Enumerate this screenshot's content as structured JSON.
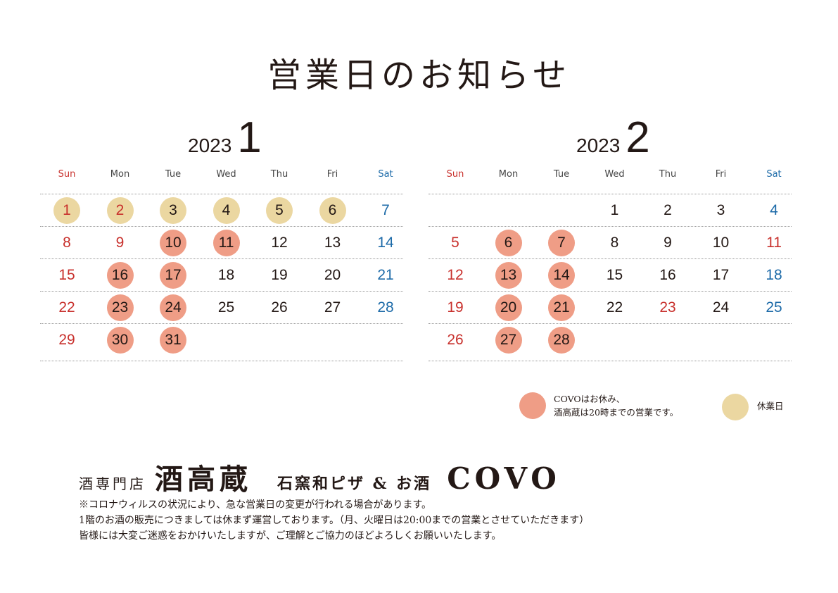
{
  "title": "営業日のお知らせ",
  "weekdays": [
    "Sun",
    "Mon",
    "Tue",
    "Wed",
    "Thu",
    "Fri",
    "Sat"
  ],
  "colors": {
    "closed": "#ef9d86",
    "holiday": "#ebd7a1",
    "sunday": "#c8302c",
    "saturday": "#1c6aa8"
  },
  "calendars": [
    {
      "year": "2023",
      "month": "1",
      "weeks": [
        [
          {
            "d": "1",
            "type": "holiday",
            "color": "red"
          },
          {
            "d": "2",
            "type": "holiday",
            "color": "red"
          },
          {
            "d": "3",
            "type": "holiday"
          },
          {
            "d": "4",
            "type": "holiday"
          },
          {
            "d": "5",
            "type": "holiday"
          },
          {
            "d": "6",
            "type": "holiday"
          },
          {
            "d": "7",
            "color": "blue"
          }
        ],
        [
          {
            "d": "8",
            "color": "red"
          },
          {
            "d": "9",
            "color": "red"
          },
          {
            "d": "10",
            "type": "closed"
          },
          {
            "d": "11",
            "type": "closed"
          },
          {
            "d": "12"
          },
          {
            "d": "13"
          },
          {
            "d": "14",
            "color": "blue"
          }
        ],
        [
          {
            "d": "15",
            "color": "red"
          },
          {
            "d": "16",
            "type": "closed"
          },
          {
            "d": "17",
            "type": "closed"
          },
          {
            "d": "18"
          },
          {
            "d": "19"
          },
          {
            "d": "20"
          },
          {
            "d": "21",
            "color": "blue"
          }
        ],
        [
          {
            "d": "22",
            "color": "red"
          },
          {
            "d": "23",
            "type": "closed"
          },
          {
            "d": "24",
            "type": "closed"
          },
          {
            "d": "25"
          },
          {
            "d": "26"
          },
          {
            "d": "27"
          },
          {
            "d": "28",
            "color": "blue"
          }
        ],
        [
          {
            "d": "29",
            "color": "red"
          },
          {
            "d": "30",
            "type": "closed"
          },
          {
            "d": "31",
            "type": "closed"
          },
          null,
          null,
          null,
          null
        ]
      ]
    },
    {
      "year": "2023",
      "month": "2",
      "weeks": [
        [
          null,
          null,
          null,
          {
            "d": "1"
          },
          {
            "d": "2"
          },
          {
            "d": "3"
          },
          {
            "d": "4",
            "color": "blue"
          }
        ],
        [
          {
            "d": "5",
            "color": "red"
          },
          {
            "d": "6",
            "type": "closed"
          },
          {
            "d": "7",
            "type": "closed"
          },
          {
            "d": "8"
          },
          {
            "d": "9"
          },
          {
            "d": "10"
          },
          {
            "d": "11",
            "color": "red"
          }
        ],
        [
          {
            "d": "12",
            "color": "red"
          },
          {
            "d": "13",
            "type": "closed"
          },
          {
            "d": "14",
            "type": "closed"
          },
          {
            "d": "15"
          },
          {
            "d": "16"
          },
          {
            "d": "17"
          },
          {
            "d": "18",
            "color": "blue"
          }
        ],
        [
          {
            "d": "19",
            "color": "red"
          },
          {
            "d": "20",
            "type": "closed"
          },
          {
            "d": "21",
            "type": "closed"
          },
          {
            "d": "22"
          },
          {
            "d": "23",
            "color": "red"
          },
          {
            "d": "24"
          },
          {
            "d": "25",
            "color": "blue"
          }
        ],
        [
          {
            "d": "26",
            "color": "red"
          },
          {
            "d": "27",
            "type": "closed"
          },
          {
            "d": "28",
            "type": "closed"
          },
          null,
          null,
          null,
          null
        ]
      ]
    }
  ],
  "legend": {
    "closed_line1": "COVOはお休み、",
    "closed_line2": "酒高蔵は20時までの営業です。",
    "holiday": "休業日"
  },
  "shop": {
    "store_type": "酒専門店",
    "store_name": "酒高蔵",
    "pizza": "石窯和ピザ & お酒",
    "brand": "COVO"
  },
  "notes": [
    "※コロナウィルスの状況により、急な営業日の変更が行われる場合があります。",
    "1階のお酒の販売につきましては休まず運営しております。（月、火曜日は20:00までの営業とさせていただきます）",
    "皆様には大変ご迷惑をおかけいたしますが、ご理解とご協力のほどよろしくお願いいたします。"
  ]
}
